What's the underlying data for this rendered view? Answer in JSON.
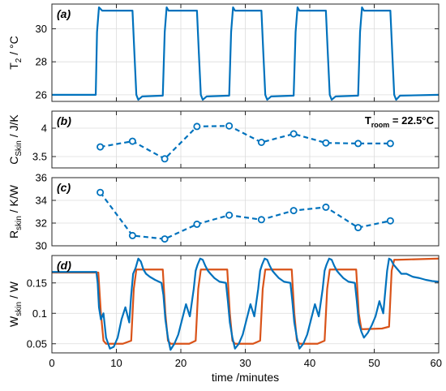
{
  "chart_data": [
    {
      "panel": "(a)",
      "type": "line",
      "ylabel_main": "T",
      "ylabel_sub": "2",
      "ylabel_unit": " / °C",
      "ylim": [
        25.6,
        31.5
      ],
      "yticks": [
        26,
        28,
        30
      ],
      "xlim": [
        0,
        60
      ],
      "grid": true,
      "color": "#0072BD",
      "series": [
        {
          "x": [
            0,
            6.8,
            7.0,
            7.3,
            7.8,
            8.3,
            12.5,
            12.8,
            13.1,
            13.4,
            14,
            17.2,
            17.5,
            17.8,
            18.1,
            18.6,
            22.5,
            22.8,
            23.1,
            23.4,
            24,
            27.5,
            27.8,
            28.1,
            28.4,
            29,
            32.5,
            32.8,
            33.1,
            33.4,
            34,
            37.5,
            37.8,
            38.1,
            38.4,
            39,
            42.5,
            42.8,
            43.1,
            43.4,
            44,
            47.5,
            47.8,
            48.1,
            48.4,
            49,
            52.5,
            52.8,
            53.1,
            53.4,
            54,
            60
          ],
          "y": [
            26.0,
            26.0,
            29.8,
            31.3,
            31.1,
            31.1,
            31.1,
            28.5,
            26.0,
            25.7,
            25.9,
            25.95,
            29.8,
            31.3,
            31.1,
            31.1,
            31.1,
            28.5,
            26.0,
            25.7,
            25.9,
            25.95,
            29.8,
            31.3,
            31.1,
            31.1,
            31.1,
            28.5,
            26.0,
            25.7,
            25.9,
            25.95,
            29.8,
            31.3,
            31.1,
            31.1,
            31.1,
            28.5,
            26.0,
            25.7,
            25.9,
            25.95,
            29.8,
            31.3,
            31.1,
            31.1,
            31.1,
            28.5,
            26.0,
            25.7,
            25.95,
            26.0
          ]
        }
      ]
    },
    {
      "panel": "(b)",
      "type": "line",
      "line_style": "dashed",
      "markers": "circle",
      "ylabel_main": "C",
      "ylabel_sub": "Skin",
      "ylabel_unit": " / J/K",
      "ylim": [
        3.3,
        4.3
      ],
      "yticks": [
        3.5,
        4
      ],
      "xlim": [
        0,
        60
      ],
      "grid": true,
      "color": "#0072BD",
      "annotation": {
        "main": "T",
        "sub": "room",
        "rest": " = 22.5°C"
      },
      "series": [
        {
          "x": [
            7.5,
            12.5,
            17.5,
            22.5,
            27.5,
            32.5,
            37.5,
            42.5,
            47.5,
            52.5
          ],
          "y": [
            3.67,
            3.77,
            3.46,
            4.03,
            4.04,
            3.75,
            3.9,
            3.74,
            3.73,
            3.73
          ]
        }
      ]
    },
    {
      "panel": "(c)",
      "type": "line",
      "line_style": "dashed",
      "markers": "circle",
      "ylabel_main": "R",
      "ylabel_sub": "skin",
      "ylabel_unit": " / K/W",
      "ylim": [
        30,
        36
      ],
      "yticks": [
        30,
        32,
        34,
        36
      ],
      "xlim": [
        0,
        60
      ],
      "grid": true,
      "color": "#0072BD",
      "series": [
        {
          "x": [
            7.5,
            12.5,
            17.5,
            22.5,
            27.5,
            32.5,
            37.5,
            42.5,
            47.5,
            52.5
          ],
          "y": [
            34.7,
            30.9,
            30.6,
            31.9,
            32.7,
            32.3,
            33.1,
            33.4,
            31.6,
            32.2
          ]
        }
      ]
    },
    {
      "panel": "(d)",
      "type": "line",
      "ylabel_main": "W",
      "ylabel_sub": "skin",
      "ylabel_unit": " / W",
      "ylim": [
        0.035,
        0.195
      ],
      "yticks": [
        0.05,
        0.1,
        0.15
      ],
      "ytick_labels": [
        "0.05",
        "0.1",
        "0.15"
      ],
      "xlim": [
        0,
        60
      ],
      "xticks": [
        0,
        10,
        20,
        30,
        40,
        50,
        60
      ],
      "xlabel": "time /minutes",
      "grid": true,
      "series": [
        {
          "color": "#D95319",
          "x": [
            0,
            7.2,
            7.6,
            8.0,
            8.4,
            11.0,
            12.3,
            12.7,
            13.1,
            13.6,
            17.2,
            17.6,
            18.0,
            18.4,
            21.3,
            22.3,
            22.7,
            23.1,
            23.6,
            27.2,
            27.6,
            28.0,
            28.4,
            31.2,
            32.3,
            32.7,
            33.1,
            33.6,
            37.2,
            37.6,
            38.0,
            38.4,
            41.2,
            42.3,
            42.7,
            43.1,
            43.6,
            47.2,
            47.6,
            48.0,
            48.4,
            51.2,
            52.3,
            52.7,
            53.1,
            53.6,
            60
          ],
          "y": [
            0.167,
            0.167,
            0.1,
            0.055,
            0.05,
            0.05,
            0.055,
            0.14,
            0.172,
            0.172,
            0.172,
            0.1,
            0.055,
            0.05,
            0.05,
            0.055,
            0.14,
            0.172,
            0.172,
            0.172,
            0.1,
            0.055,
            0.05,
            0.05,
            0.055,
            0.14,
            0.172,
            0.172,
            0.172,
            0.1,
            0.055,
            0.05,
            0.05,
            0.055,
            0.14,
            0.172,
            0.172,
            0.172,
            0.1,
            0.074,
            0.074,
            0.075,
            0.078,
            0.17,
            0.188,
            0.188,
            0.19
          ]
        },
        {
          "color": "#0072BD",
          "x": [
            0,
            6.9,
            7.1,
            7.3,
            7.6,
            8.0,
            8.4,
            9.0,
            9.6,
            10.2,
            10.8,
            11.4,
            12.0,
            12.3,
            12.6,
            13.0,
            13.4,
            13.8,
            14.2,
            14.6,
            15.2,
            16.0,
            17.0,
            17.3,
            17.6,
            18.0,
            18.4,
            19.0,
            19.6,
            20.2,
            20.8,
            21.4,
            22.0,
            22.3,
            22.6,
            23.0,
            23.4,
            23.8,
            24.2,
            24.6,
            25.2,
            26.0,
            27.0,
            27.3,
            27.6,
            28.0,
            28.4,
            29.0,
            29.6,
            30.2,
            30.8,
            31.4,
            32.0,
            32.3,
            32.6,
            33.0,
            33.4,
            33.8,
            34.2,
            34.6,
            35.2,
            36.0,
            37.0,
            37.3,
            37.6,
            38.0,
            38.4,
            39.0,
            39.6,
            40.2,
            40.8,
            41.4,
            42.0,
            42.3,
            42.6,
            43.0,
            43.4,
            43.8,
            44.2,
            44.6,
            45.2,
            46.0,
            47.0,
            47.3,
            47.6,
            48.0,
            48.4,
            49.0,
            49.6,
            50.2,
            50.8,
            51.4,
            52.0,
            52.3,
            52.6,
            53.0,
            53.4,
            53.8,
            54.2,
            55.0,
            56.0,
            57.0,
            58.0,
            59.0,
            60
          ],
          "y": [
            0.168,
            0.168,
            0.15,
            0.11,
            0.09,
            0.1,
            0.06,
            0.042,
            0.045,
            0.06,
            0.09,
            0.11,
            0.085,
            0.13,
            0.165,
            0.175,
            0.19,
            0.185,
            0.172,
            0.165,
            0.16,
            0.155,
            0.15,
            0.13,
            0.09,
            0.06,
            0.04,
            0.05,
            0.065,
            0.09,
            0.115,
            0.095,
            0.14,
            0.17,
            0.18,
            0.19,
            0.188,
            0.178,
            0.17,
            0.165,
            0.158,
            0.152,
            0.15,
            0.12,
            0.085,
            0.06,
            0.042,
            0.05,
            0.065,
            0.09,
            0.115,
            0.095,
            0.14,
            0.17,
            0.18,
            0.19,
            0.188,
            0.178,
            0.17,
            0.165,
            0.158,
            0.152,
            0.15,
            0.12,
            0.085,
            0.06,
            0.042,
            0.05,
            0.065,
            0.09,
            0.115,
            0.095,
            0.14,
            0.17,
            0.18,
            0.19,
            0.188,
            0.178,
            0.17,
            0.165,
            0.158,
            0.152,
            0.15,
            0.12,
            0.085,
            0.07,
            0.06,
            0.068,
            0.08,
            0.095,
            0.12,
            0.1,
            0.17,
            0.19,
            0.188,
            0.18,
            0.175,
            0.17,
            0.165,
            0.165,
            0.16,
            0.158,
            0.155,
            0.153,
            0.152
          ]
        }
      ]
    }
  ]
}
